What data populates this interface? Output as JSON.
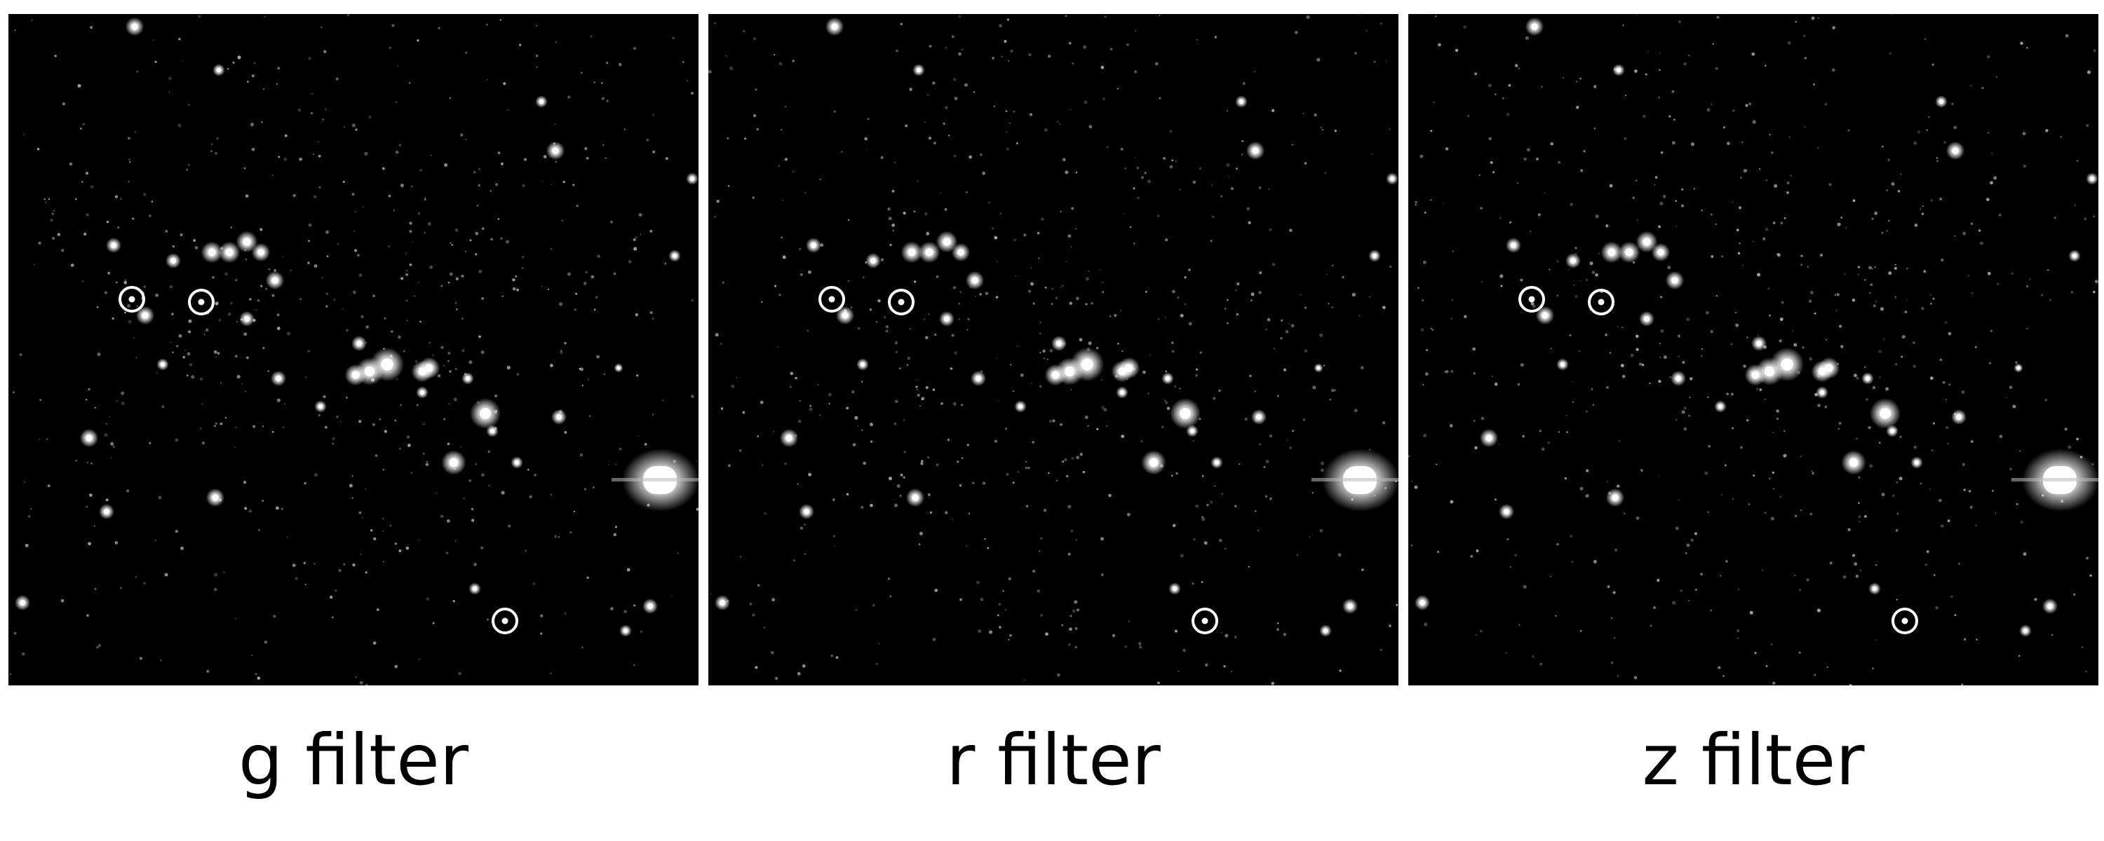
{
  "panels": [
    {
      "id": "g",
      "caption": "g filter"
    },
    {
      "id": "r",
      "caption": "r filter"
    },
    {
      "id": "z",
      "caption": "z filter"
    }
  ],
  "colors": {
    "background": "#000000",
    "star": "#ffffff",
    "marker": "#ffffff",
    "caption_text": "#000000"
  }
}
